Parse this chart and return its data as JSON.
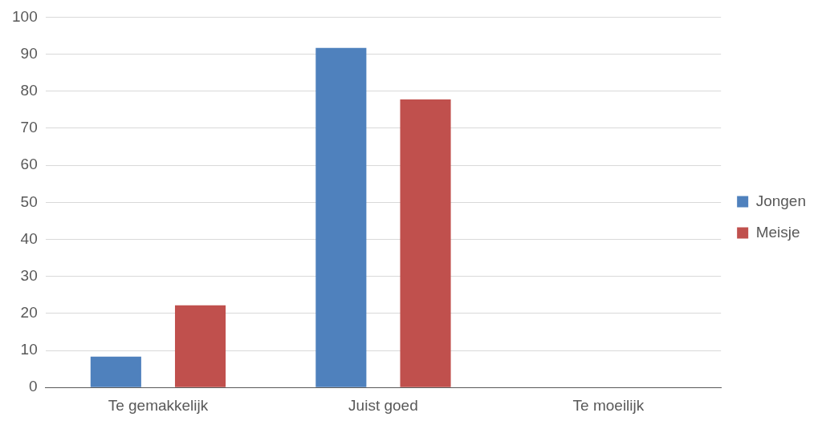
{
  "chart_data": {
    "type": "bar",
    "categories": [
      "Te gemakkelijk",
      "Juist goed",
      "Te moeilijk"
    ],
    "series": [
      {
        "name": "Jongen",
        "color": "#4f81bd",
        "values": [
          8.3,
          91.7,
          0
        ]
      },
      {
        "name": "Meisje",
        "color": "#c0504d",
        "values": [
          22.2,
          77.8,
          0
        ]
      }
    ],
    "ylim": [
      0,
      100
    ],
    "yticks": [
      0,
      10,
      20,
      30,
      40,
      50,
      60,
      70,
      80,
      90,
      100
    ],
    "grid": "y",
    "legend": "right"
  }
}
